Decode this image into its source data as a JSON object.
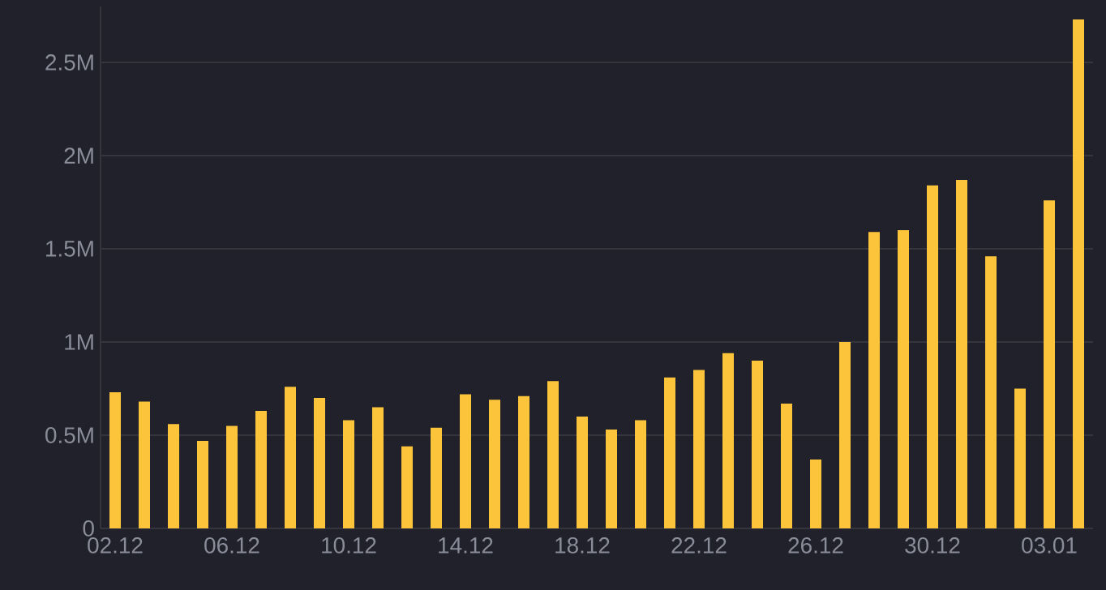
{
  "chart_data": {
    "type": "bar",
    "categories": [
      "02.12",
      null,
      null,
      null,
      "06.12",
      null,
      null,
      null,
      "10.12",
      null,
      null,
      null,
      "14.12",
      null,
      null,
      null,
      "18.12",
      null,
      null,
      null,
      "22.12",
      null,
      null,
      null,
      "26.12",
      null,
      null,
      null,
      "30.12",
      null,
      null,
      null,
      "03.01",
      null
    ],
    "values": [
      0.73,
      0.68,
      0.56,
      0.47,
      0.55,
      0.63,
      0.76,
      0.7,
      0.58,
      0.65,
      0.44,
      0.54,
      0.72,
      0.69,
      0.71,
      0.79,
      0.6,
      0.53,
      0.58,
      0.81,
      0.85,
      0.94,
      0.9,
      0.67,
      0.37,
      1.0,
      1.59,
      1.6,
      1.84,
      1.87,
      1.46,
      0.75,
      1.76,
      2.73
    ],
    "color": "#fcc43a",
    "ylim": [
      0,
      2.8
    ],
    "yticks": [
      0,
      {
        "value": 0.5,
        "label": "0.5M"
      },
      {
        "value": 1,
        "label": "1M"
      },
      {
        "value": 1.5,
        "label": "1.5M"
      },
      {
        "value": 2,
        "label": "2M"
      },
      {
        "value": 2.5,
        "label": "2.5M"
      }
    ],
    "grid": "y"
  }
}
